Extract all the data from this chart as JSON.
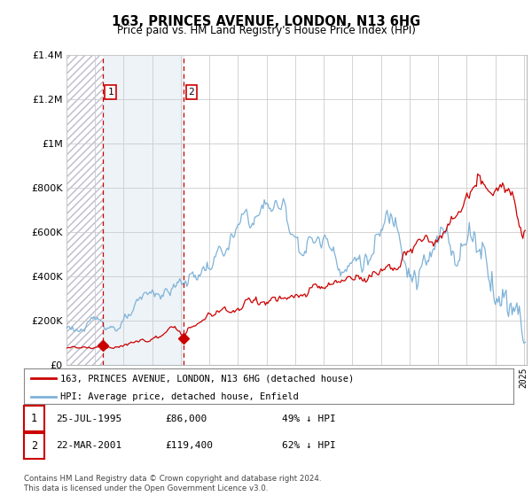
{
  "title": "163, PRINCES AVENUE, LONDON, N13 6HG",
  "subtitle": "Price paid vs. HM Land Registry's House Price Index (HPI)",
  "ylim": [
    0,
    1400000
  ],
  "yticks": [
    0,
    200000,
    400000,
    600000,
    800000,
    1000000,
    1200000,
    1400000
  ],
  "sale1_date": "25-JUL-1995",
  "sale1_price": 86000,
  "sale1_label": "49% ↓ HPI",
  "sale2_date": "22-MAR-2001",
  "sale2_price": 119400,
  "sale2_label": "62% ↓ HPI",
  "sale1_x": 1995.57,
  "sale2_x": 2001.22,
  "legend_property": "163, PRINCES AVENUE, LONDON, N13 6HG (detached house)",
  "legend_hpi": "HPI: Average price, detached house, Enfield",
  "footer": "Contains HM Land Registry data © Crown copyright and database right 2024.\nThis data is licensed under the Open Government Licence v3.0.",
  "hpi_color": "#7fb3d8",
  "price_color": "#cc0000",
  "vline_color": "#cc0000",
  "grid_color": "#cccccc",
  "bg_color": "#ffffff",
  "hatch_fill_color": "#dde8f0",
  "xstart": 1993.0,
  "xend": 2025.2
}
